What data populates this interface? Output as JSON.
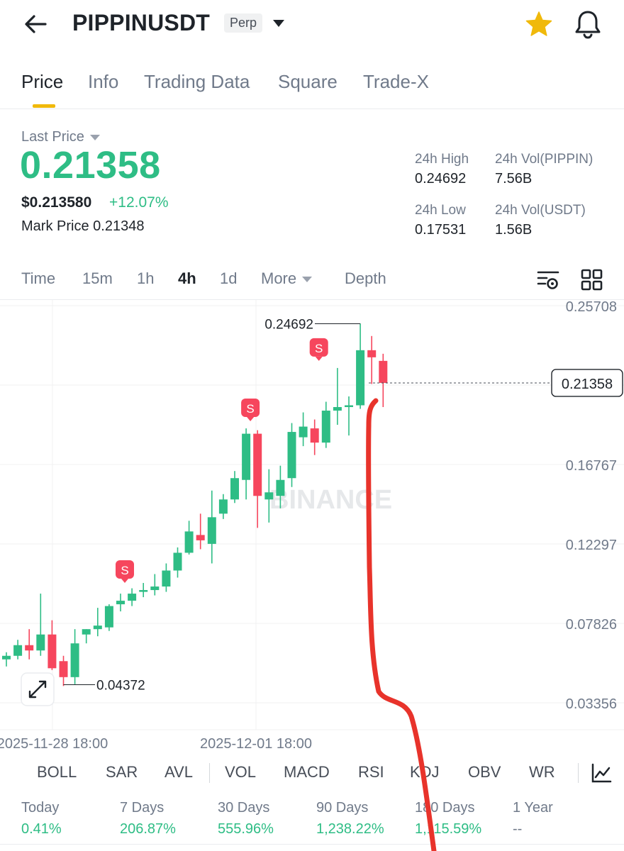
{
  "header": {
    "back_icon": "arrow-left-icon",
    "symbol": "PIPPINUSDT",
    "contract_type": "Perp",
    "favorite_icon": "star-icon",
    "favorite_color": "#f0b90b",
    "alert_icon": "bell-icon"
  },
  "tabs": [
    {
      "label": "Price",
      "active": true
    },
    {
      "label": "Info"
    },
    {
      "label": "Trading Data"
    },
    {
      "label": "Square"
    },
    {
      "label": "Trade-X"
    }
  ],
  "price_panel": {
    "last_price_label": "Last Price",
    "last_price": "0.21358",
    "usd_price": "$0.213580",
    "change_pct": "+12.07%",
    "mark_price_label": "Mark Price",
    "mark_price": "0.21348"
  },
  "stats": {
    "high_label": "24h High",
    "high": "0.24692",
    "vol_base_label": "24h Vol(PIPPIN)",
    "vol_base": "7.56B",
    "low_label": "24h Low",
    "low": "0.17531",
    "vol_quote_label": "24h Vol(USDT)",
    "vol_quote": "1.56B"
  },
  "intervals": {
    "items": [
      "Time",
      "15m",
      "1h",
      "4h",
      "1d",
      "More",
      "Depth"
    ],
    "active": "4h",
    "settings_icon": "chart-settings-icon",
    "layout_icon": "grid-layout-icon"
  },
  "chart_data": {
    "type": "candlestick",
    "interval": "4h",
    "y_ticks": [
      "0.25708",
      "0.21358",
      "0.16767",
      "0.12297",
      "0.07826",
      "0.03356"
    ],
    "x_ticks": [
      "2025-11-28 18:00",
      "2025-12-01 18:00"
    ],
    "current_price": "0.21358",
    "high_marker": "0.24692",
    "low_marker": "0.04372",
    "watermark": "BINANCE",
    "sell_marker_label": "S",
    "up_color": "#2ebd85",
    "down_color": "#f6465d",
    "candles": [
      {
        "o": 0.058,
        "h": 0.062,
        "l": 0.054,
        "c": 0.06
      },
      {
        "o": 0.06,
        "h": 0.069,
        "l": 0.058,
        "c": 0.066
      },
      {
        "o": 0.066,
        "h": 0.075,
        "l": 0.058,
        "c": 0.063
      },
      {
        "o": 0.063,
        "h": 0.095,
        "l": 0.06,
        "c": 0.072
      },
      {
        "o": 0.072,
        "h": 0.08,
        "l": 0.052,
        "c": 0.053
      },
      {
        "o": 0.057,
        "h": 0.06,
        "l": 0.043,
        "c": 0.048
      },
      {
        "o": 0.048,
        "h": 0.075,
        "l": 0.044,
        "c": 0.067
      },
      {
        "o": 0.072,
        "h": 0.075,
        "l": 0.067,
        "c": 0.075
      },
      {
        "o": 0.075,
        "h": 0.087,
        "l": 0.071,
        "c": 0.077
      },
      {
        "o": 0.076,
        "h": 0.089,
        "l": 0.074,
        "c": 0.088
      },
      {
        "o": 0.089,
        "h": 0.095,
        "l": 0.085,
        "c": 0.091
      },
      {
        "o": 0.091,
        "h": 0.098,
        "l": 0.088,
        "c": 0.095
      },
      {
        "o": 0.096,
        "h": 0.101,
        "l": 0.093,
        "c": 0.097
      },
      {
        "o": 0.097,
        "h": 0.106,
        "l": 0.094,
        "c": 0.099
      },
      {
        "o": 0.099,
        "h": 0.112,
        "l": 0.096,
        "c": 0.108
      },
      {
        "o": 0.108,
        "h": 0.121,
        "l": 0.104,
        "c": 0.118
      },
      {
        "o": 0.118,
        "h": 0.136,
        "l": 0.117,
        "c": 0.13
      },
      {
        "o": 0.128,
        "h": 0.14,
        "l": 0.12,
        "c": 0.125
      },
      {
        "o": 0.123,
        "h": 0.153,
        "l": 0.112,
        "c": 0.138
      },
      {
        "o": 0.14,
        "h": 0.151,
        "l": 0.137,
        "c": 0.148
      },
      {
        "o": 0.148,
        "h": 0.164,
        "l": 0.146,
        "c": 0.16
      },
      {
        "o": 0.159,
        "h": 0.188,
        "l": 0.148,
        "c": 0.185
      },
      {
        "o": 0.185,
        "h": 0.187,
        "l": 0.132,
        "c": 0.15
      },
      {
        "o": 0.148,
        "h": 0.165,
        "l": 0.135,
        "c": 0.152
      },
      {
        "o": 0.15,
        "h": 0.167,
        "l": 0.143,
        "c": 0.159
      },
      {
        "o": 0.16,
        "h": 0.191,
        "l": 0.155,
        "c": 0.186
      },
      {
        "o": 0.183,
        "h": 0.197,
        "l": 0.178,
        "c": 0.189
      },
      {
        "o": 0.188,
        "h": 0.193,
        "l": 0.173,
        "c": 0.18
      },
      {
        "o": 0.18,
        "h": 0.203,
        "l": 0.177,
        "c": 0.198
      },
      {
        "o": 0.198,
        "h": 0.222,
        "l": 0.19,
        "c": 0.2
      },
      {
        "o": 0.2,
        "h": 0.206,
        "l": 0.184,
        "c": 0.201
      },
      {
        "o": 0.201,
        "h": 0.247,
        "l": 0.199,
        "c": 0.232
      },
      {
        "o": 0.232,
        "h": 0.24,
        "l": 0.213,
        "c": 0.228
      },
      {
        "o": 0.226,
        "h": 0.23,
        "l": 0.2,
        "c": 0.2136
      }
    ]
  },
  "chart_ui": {
    "expand_icon": "expand-icon",
    "drawing_icon": "hand-drawn-red-line"
  },
  "indicators": {
    "items": [
      "BOLL",
      "SAR",
      "AVL",
      "VOL",
      "MACD",
      "RSI",
      "KDJ",
      "OBV",
      "WR"
    ],
    "settings_icon": "indicator-chart-icon"
  },
  "performance": [
    {
      "label": "Today",
      "value": "0.41%"
    },
    {
      "label": "7 Days",
      "value": "206.87%"
    },
    {
      "label": "30 Days",
      "value": "555.96%"
    },
    {
      "label": "90 Days",
      "value": "1,238.22%"
    },
    {
      "label": "180 Days",
      "value": "1,115.59%"
    },
    {
      "label": "1 Year",
      "value": "--"
    }
  ]
}
